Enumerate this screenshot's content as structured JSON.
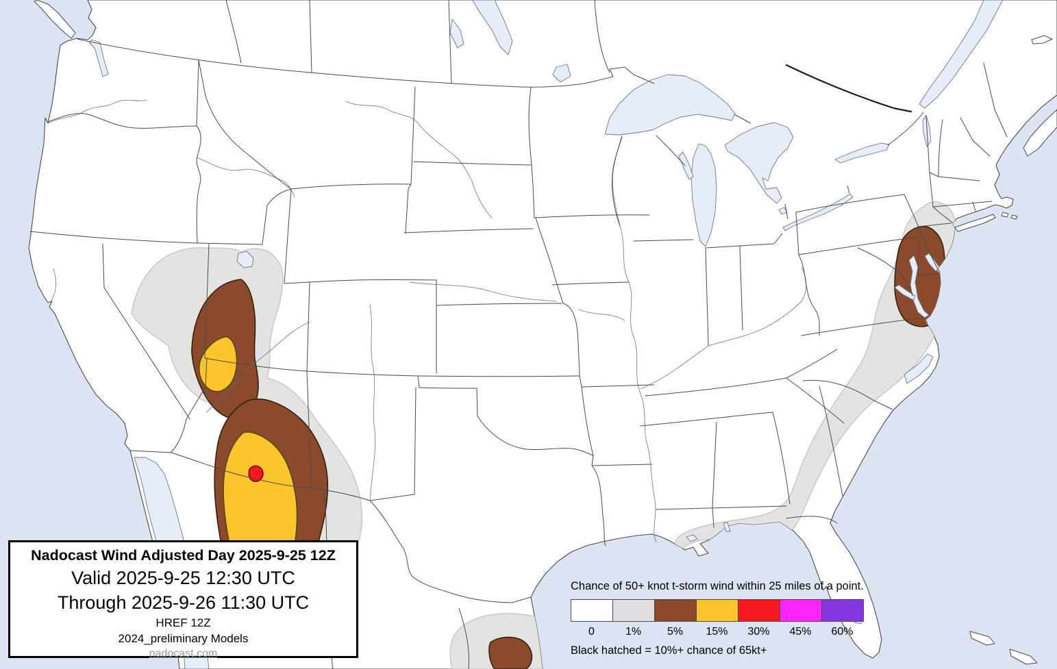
{
  "title_box": {
    "title": "Nadocast Wind Adjusted Day 2025-9-25 12Z",
    "valid": "Valid 2025-9-25 12:30 UTC",
    "through": "Through 2025-9-26 11:30 UTC",
    "model": "HREF 12Z",
    "models_note": "2024_preliminary Models",
    "website": "nadocast.com"
  },
  "legend": {
    "title": "Chance of 50+ knot t-storm wind within 25 miles of a point.",
    "bins": [
      {
        "label": "0",
        "color": "#ffffff"
      },
      {
        "label": "1%",
        "color": "#e0dfde"
      },
      {
        "label": "5%",
        "color": "#8b4a2c"
      },
      {
        "label": "15%",
        "color": "#fcc42d"
      },
      {
        "label": "30%",
        "color": "#f5181f"
      },
      {
        "label": "45%",
        "color": "#fb24fb"
      },
      {
        "label": "60%",
        "color": "#8335e0"
      }
    ],
    "hatched_note": "Black hatched = 10%+ chance of 65kt+"
  },
  "map": {
    "colors": {
      "water": "#dce3f2",
      "land": "#ffffff",
      "lake": "#e6ecf8",
      "state_border": "#4a4a4a",
      "gray_1pct": "#e4e3e1",
      "gray_border": "#c9c8c6",
      "brown_5pct": "#8b4a2c",
      "brown_border": "#30200f",
      "yellow_15pct": "#fcc42d",
      "yellow_border": "#4f4a00",
      "red_30pct": "#f5181f",
      "red_border": "#7e0000"
    },
    "regions": [
      {
        "level": "1%",
        "area": "Great Basin and Southwest (Nevada, Utah, Arizona, New Mexico)"
      },
      {
        "level": "5%",
        "area": "Eastern Nevada / western Utah"
      },
      {
        "level": "15%",
        "area": "Nevada-Utah border area"
      },
      {
        "level": "5%",
        "area": "Central and eastern Arizona into western New Mexico"
      },
      {
        "level": "15%",
        "area": "Central Arizona"
      },
      {
        "level": "30%",
        "area": "Small spot in central Arizona"
      },
      {
        "level": "1%",
        "area": "Mid-Atlantic south through the Carolinas and Georgia to the central Gulf Coast"
      },
      {
        "level": "5%",
        "area": "Delmarva / Chesapeake Bay region (Maryland, Delaware, southern New Jersey)"
      },
      {
        "level": "1%",
        "area": "Northeastern Mexico near the lower Texas coast"
      },
      {
        "level": "5%",
        "area": "Northeastern Mexico near the lower Texas coast"
      }
    ]
  }
}
